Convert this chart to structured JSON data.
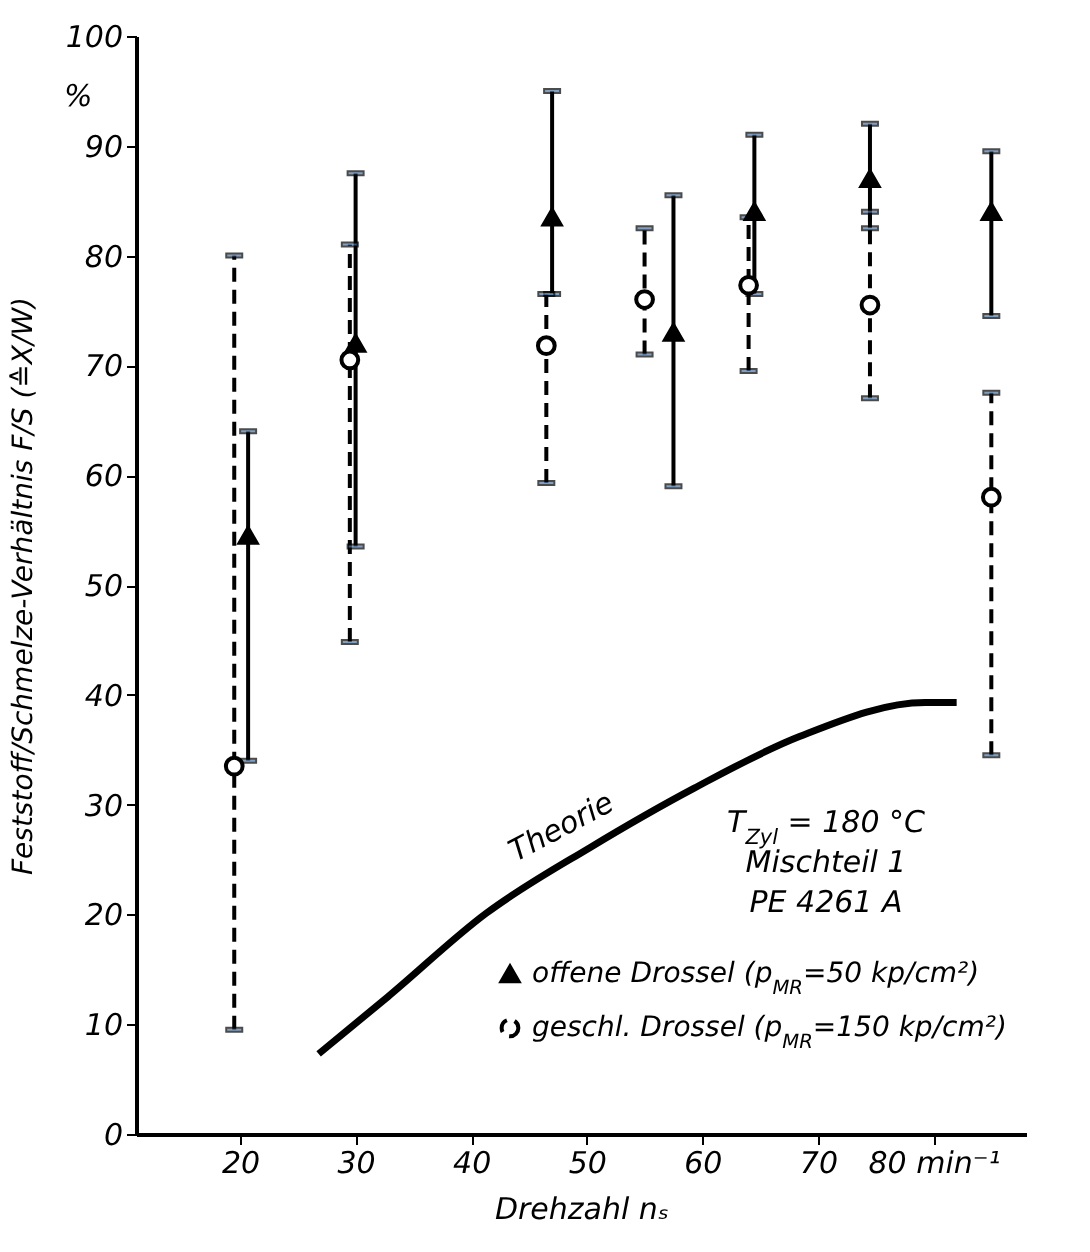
{
  "chart_data": {
    "type": "scatter",
    "xlabel": "Drehzahl nₛ",
    "ylabel": "Feststoff/Schmelze-Verhältnis  F/S (≙X/W)",
    "xlim": [
      11,
      88
    ],
    "ylim": [
      0,
      100
    ],
    "xticks": [
      20,
      30,
      40,
      50,
      60,
      70,
      {
        "value": 80,
        "label": "80 min⁻¹"
      }
    ],
    "yticks": [
      0,
      10,
      20,
      30,
      40,
      50,
      60,
      70,
      80,
      90,
      100
    ],
    "grid": false,
    "legend": "bottom right",
    "annotations": [
      "%",
      "T$_{Zyl}$ = 180 °C",
      "Mischteil 1",
      "PE 4261 A"
    ],
    "series": [
      {
        "name": "offene Drossel (p$_{MR}$=50 kp/cm²)",
        "marker": "triangle",
        "line_style": "solid",
        "color": "#000000",
        "x": [
          20.7,
          30,
          47,
          57.5,
          64.5,
          74.5,
          85
        ],
        "values": [
          54.5,
          72,
          83.5,
          73,
          84,
          87,
          84
        ],
        "errors": [
          [
            34,
            64
          ],
          [
            53.5,
            87.5
          ],
          [
            76.5,
            95
          ],
          [
            59,
            85.5
          ],
          [
            76.5,
            91
          ],
          [
            82.5,
            92
          ],
          [
            74.5,
            89.5
          ]
        ]
      },
      {
        "name": "geschl. Drossel (p$_{MR}$=150 kp/cm²)",
        "marker": "circle",
        "line_style": "dashed",
        "color": "#000000",
        "x": [
          19.5,
          29.5,
          46.5,
          55,
          64,
          74.5,
          85
        ],
        "values": [
          33.5,
          70.5,
          71.8,
          76,
          77.3,
          75.5,
          58
        ],
        "errors": [
          [
            9.5,
            80
          ],
          [
            44.8,
            81
          ],
          [
            59.3,
            76.5
          ],
          [
            71,
            82.5
          ],
          [
            69.5,
            83.5
          ],
          [
            67,
            84
          ],
          [
            34.5,
            67.5
          ]
        ]
      },
      {
        "name": "Theorie",
        "type": "line",
        "line_style": "solid",
        "color": "#000000",
        "x": [
          26.8,
          32.8,
          41.3,
          50.3,
          59.3,
          68.4,
          79.3,
          82
        ],
        "values": [
          7.3,
          12.5,
          20.1,
          26.1,
          31.5,
          36.2,
          39.3,
          39.3
        ]
      }
    ]
  }
}
